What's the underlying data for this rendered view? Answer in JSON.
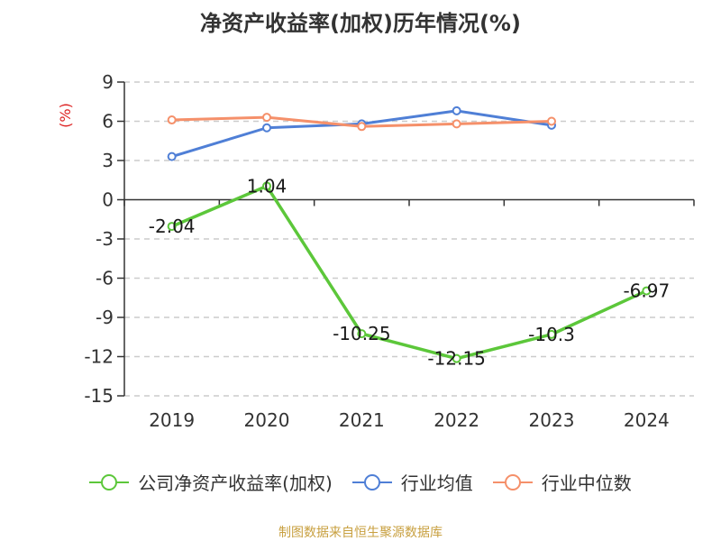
{
  "title": "净资产收益率(加权)历年情况(%)",
  "source_text": "制图数据来自恒生聚源数据库",
  "chart_data": {
    "type": "line",
    "title": "净资产收益率(加权)历年情况(%)",
    "ylabel": "(%)",
    "categories": [
      "2019",
      "2020",
      "2021",
      "2022",
      "2023",
      "2024"
    ],
    "ylim": [
      -15,
      9
    ],
    "yticks": [
      9,
      6,
      3,
      0,
      -3,
      -6,
      -9,
      -12,
      -15
    ],
    "ytick_labels": [
      "9",
      "6",
      "3",
      "0",
      "-3",
      "-6",
      "-9",
      "-12",
      "-15"
    ],
    "grid": "horizontal-dashed",
    "legend_position": "bottom",
    "series": [
      {
        "name": "公司净资产收益率(加权)",
        "color": "#5cc73a",
        "values": [
          -2.04,
          1.04,
          -10.25,
          -12.15,
          -10.3,
          -6.97
        ],
        "data_labels": [
          "-2.04",
          "1.04",
          "-10.25",
          "-12.15",
          "-10.3",
          "-6.97"
        ]
      },
      {
        "name": "行业均值",
        "color": "#4f7fd6",
        "values": [
          3.3,
          5.5,
          5.8,
          6.8,
          5.7,
          null
        ]
      },
      {
        "name": "行业中位数",
        "color": "#f5906a",
        "values": [
          6.1,
          6.3,
          5.6,
          5.8,
          6.0,
          null
        ]
      }
    ]
  }
}
